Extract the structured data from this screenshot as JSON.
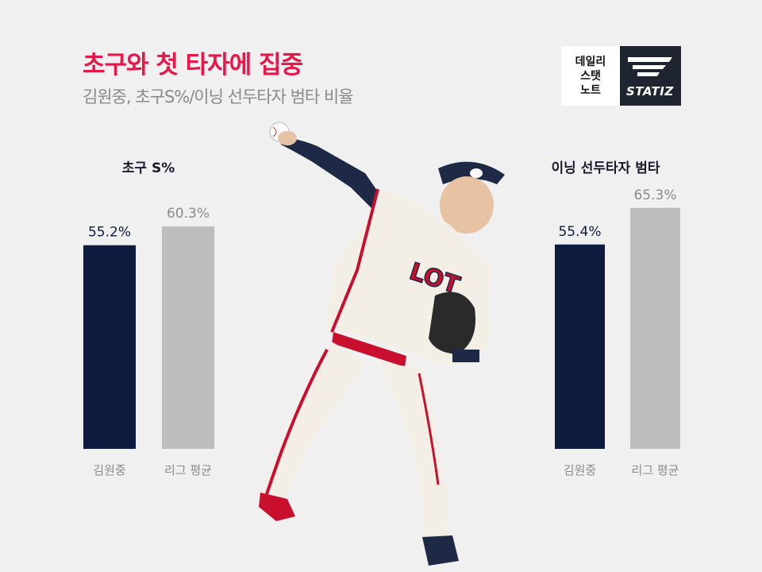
{
  "header": {
    "title": "초구와 첫 타자에 집중",
    "subtitle": "김원중, 초구S%/이닝 선두타자 범타 비율"
  },
  "logo": {
    "line1": "데일리",
    "line2": "스탯",
    "line3": "노트",
    "brand": "STATIZ"
  },
  "colors": {
    "title": "#e8174a",
    "player_bar": "#0d1b3e",
    "league_bar": "#bdbdbd"
  },
  "chart_data": [
    {
      "type": "bar",
      "title": "초구 S%",
      "categories": [
        "김원중",
        "리그 평균"
      ],
      "values": [
        55.2,
        60.3
      ],
      "labels": [
        "55.2%",
        "60.3%"
      ]
    },
    {
      "type": "bar",
      "title": "이닝 선두타자 범타",
      "categories": [
        "김원중",
        "리그 평균"
      ],
      "values": [
        55.4,
        65.3
      ],
      "labels": [
        "55.4%",
        "65.3%"
      ]
    }
  ]
}
